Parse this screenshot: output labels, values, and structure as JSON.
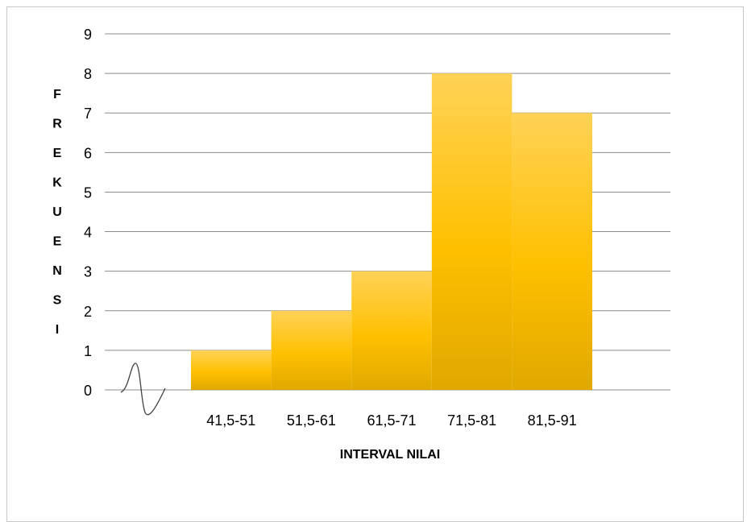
{
  "chart_data": {
    "type": "bar",
    "categories": [
      "41,5-51",
      "51,5-61",
      "61,5-71",
      "71,5-81",
      "81,5-91"
    ],
    "values": [
      1,
      2,
      3,
      8,
      7
    ],
    "xlabel": "INTERVAL NILAI",
    "ylabel": "FREKUENSI",
    "ylim": [
      0,
      9
    ],
    "yticks": [
      "0",
      "1",
      "2",
      "3",
      "4",
      "5",
      "6",
      "7",
      "8",
      "9"
    ],
    "grid": true,
    "bar_gap": 0,
    "axis_break_on_x": true,
    "colors": {
      "bar_top": "#ffd257",
      "bar_mid": "#ffc000",
      "bar_bottom": "#e0a800",
      "grid": "#8c8c8c"
    }
  }
}
